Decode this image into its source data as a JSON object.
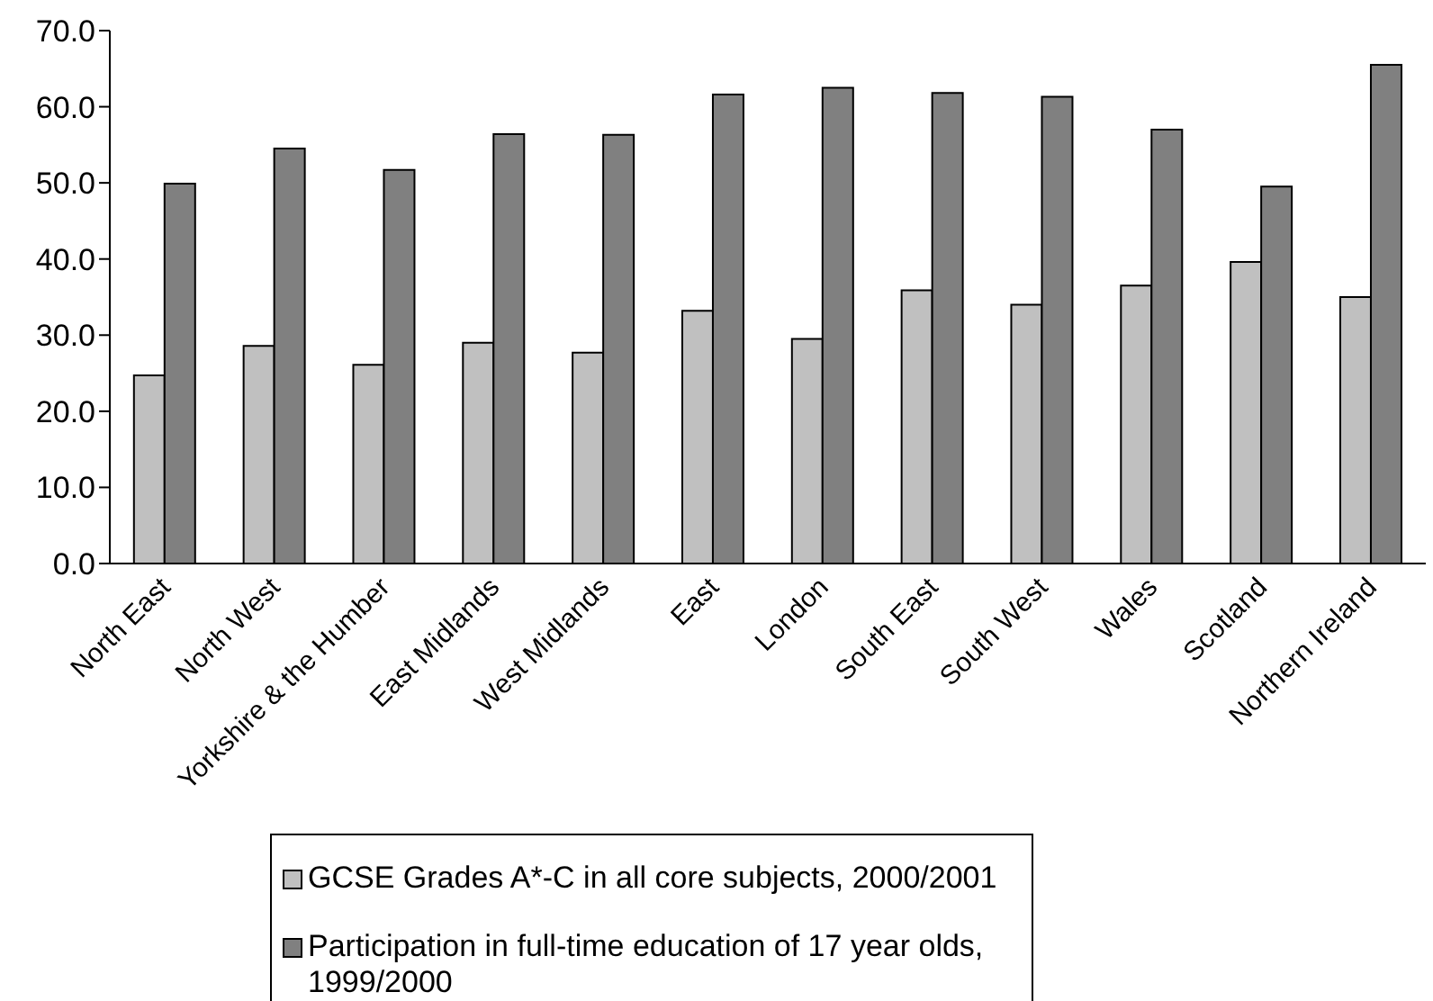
{
  "chart_data": {
    "type": "bar",
    "categories": [
      "North East",
      "North West",
      "Yorkshire & the Humber",
      "East Midlands",
      "West Midlands",
      "East",
      "London",
      "South East",
      "South West",
      "Wales",
      "Scotland",
      "Northern Ireland"
    ],
    "series": [
      {
        "name": "GCSE Grades A*-C in all core subjects, 2000/2001",
        "color": "#c0c0c0",
        "values": [
          24.7,
          28.6,
          26.1,
          29.0,
          27.7,
          33.2,
          29.5,
          35.9,
          34.0,
          36.5,
          39.6,
          35.0
        ]
      },
      {
        "name": "Participation in full-time education of 17 year olds, 1999/2000",
        "color": "#808080",
        "values": [
          49.9,
          54.5,
          51.7,
          56.4,
          56.3,
          61.6,
          62.5,
          61.8,
          61.3,
          57.0,
          49.5,
          65.5
        ]
      }
    ],
    "ylim": [
      0,
      70
    ],
    "yticks": [
      {
        "value": 0,
        "label": "0.0"
      },
      {
        "value": 10,
        "label": "10.0"
      },
      {
        "value": 20,
        "label": "20.0"
      },
      {
        "value": 30,
        "label": "30.0"
      },
      {
        "value": 40,
        "label": "40.0"
      },
      {
        "value": 50,
        "label": "50.0"
      },
      {
        "value": 60,
        "label": "60.0"
      },
      {
        "value": 70,
        "label": "70.0"
      }
    ],
    "grid": false,
    "legend": "bottom"
  }
}
